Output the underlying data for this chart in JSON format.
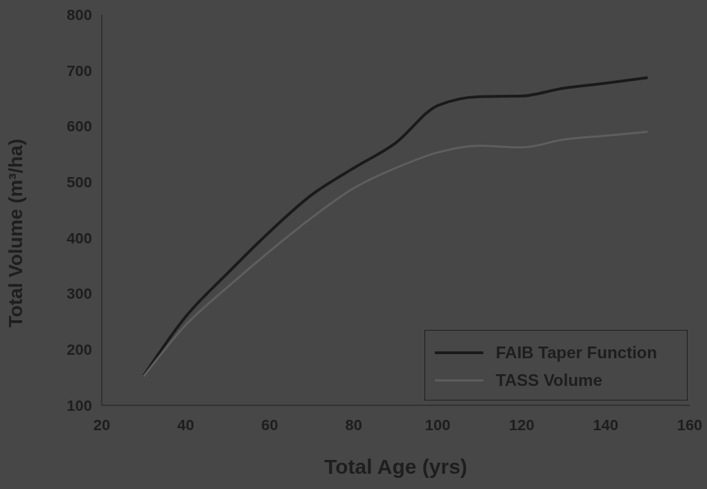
{
  "chart_data": {
    "type": "line",
    "xlabel": "Total Age (yrs)",
    "ylabel": "Total Volume (m³/ha)",
    "x": [
      30,
      40,
      50,
      60,
      70,
      80,
      90,
      100,
      110,
      120,
      130,
      140,
      150
    ],
    "series": [
      {
        "name": "FAIB Taper Function",
        "color": "#1a1a1a",
        "values": [
          153,
          259,
          337,
          411,
          477,
          525,
          570,
          637,
          653,
          654,
          668,
          677,
          687
        ]
      },
      {
        "name": "TASS Volume",
        "color": "#5e5e5e",
        "values": [
          152,
          244,
          312,
          376,
          436,
          489,
          525,
          553,
          565,
          562,
          576,
          583,
          590
        ]
      }
    ],
    "xlim": [
      20,
      160
    ],
    "xticks": [
      20,
      40,
      60,
      80,
      100,
      120,
      140,
      160
    ],
    "ylim": [
      100,
      800
    ],
    "yticks": [
      100,
      200,
      300,
      400,
      500,
      600,
      700,
      800
    ],
    "grid": false,
    "legend": "bottom right",
    "marker": "none",
    "line_style": "solid"
  }
}
